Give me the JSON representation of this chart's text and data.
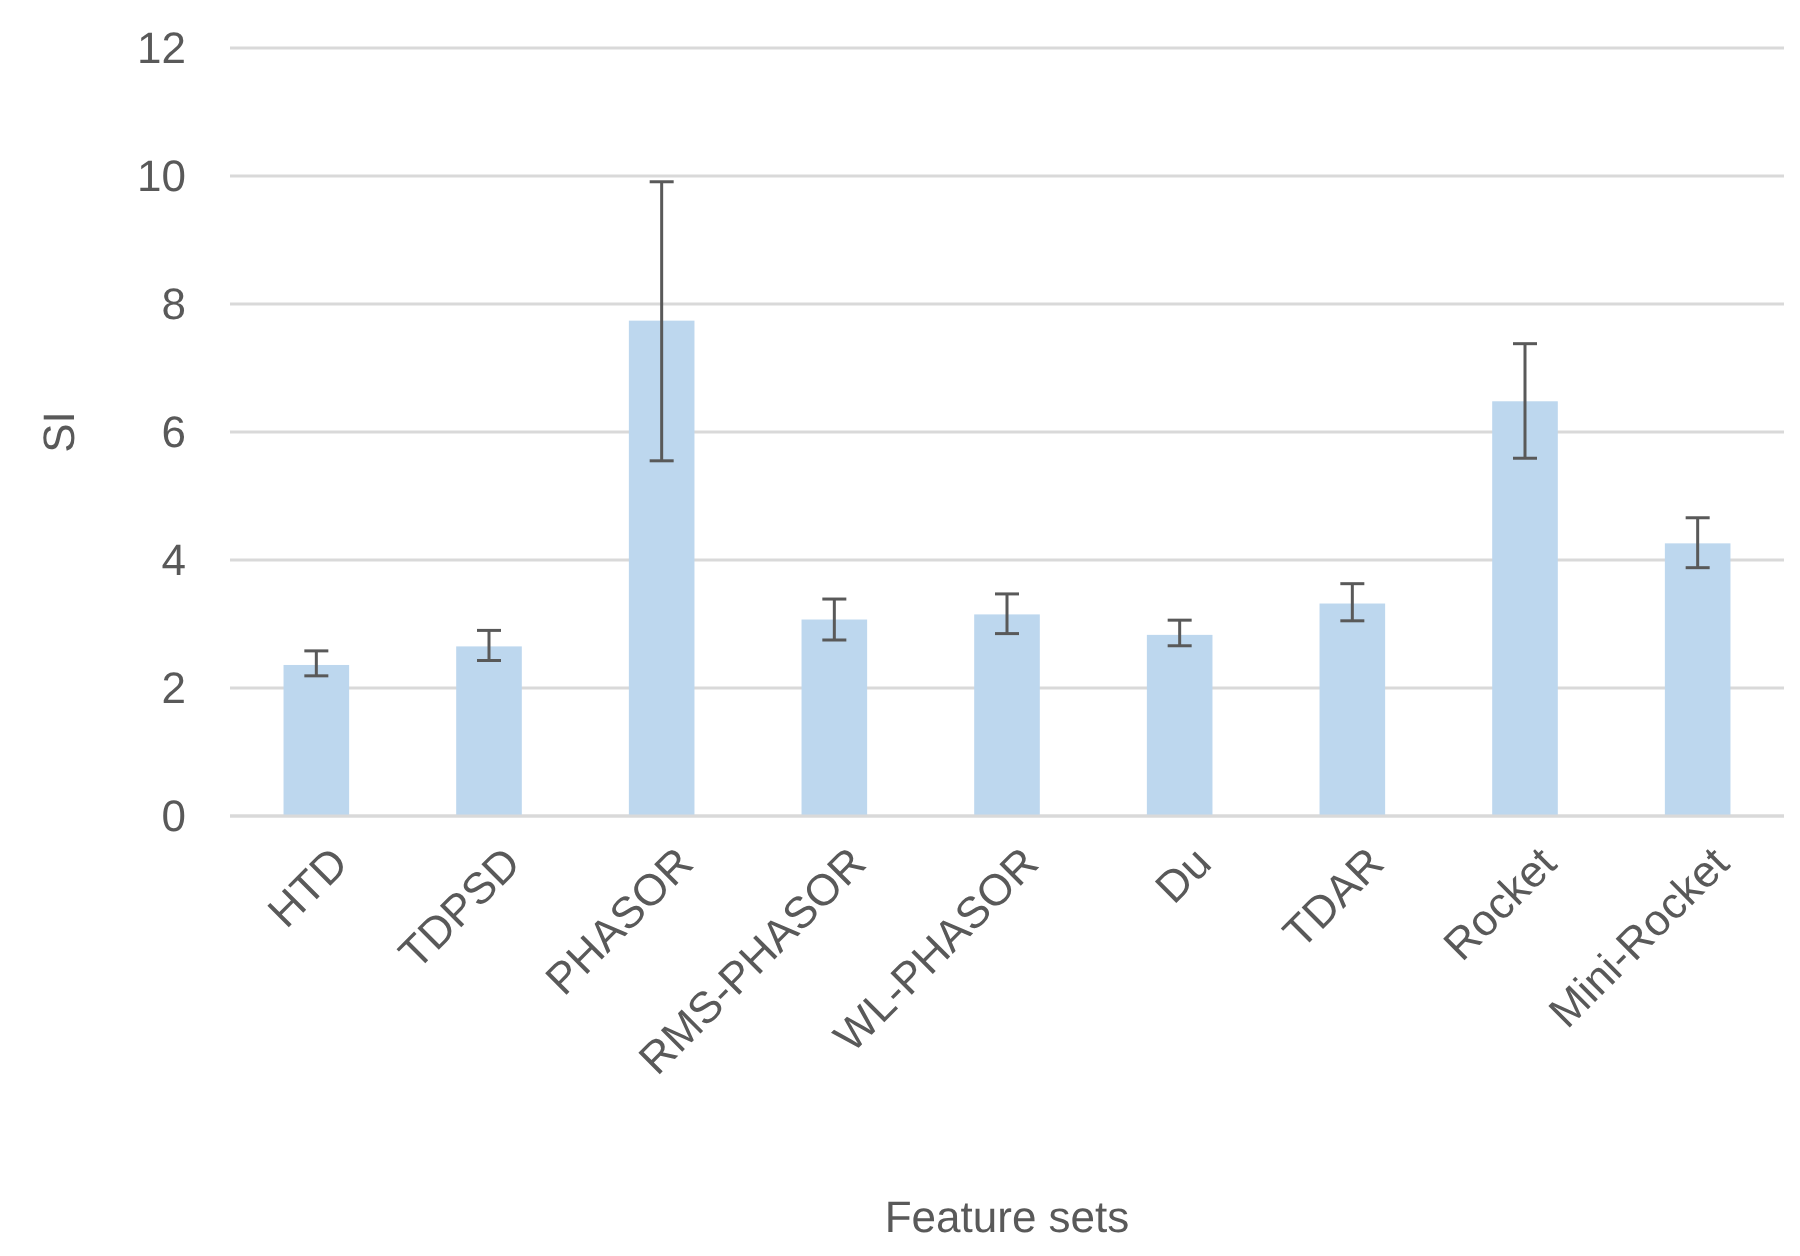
{
  "chart_data": {
    "type": "bar",
    "xlabel": "Feature sets",
    "ylabel": "SI",
    "categories": [
      "HTD",
      "TDPSD",
      "PHASOR",
      "RMS-PHASOR",
      "WL-PHASOR",
      "Du",
      "TDAR",
      "Rocket",
      "Mini-Rocket"
    ],
    "values": [
      2.36,
      2.65,
      7.74,
      3.07,
      3.15,
      2.83,
      3.32,
      6.48,
      4.26
    ],
    "errors": [
      [
        2.19,
        2.58
      ],
      [
        2.43,
        2.9
      ],
      [
        5.55,
        9.91
      ],
      [
        2.75,
        3.39
      ],
      [
        2.85,
        3.47
      ],
      [
        2.66,
        3.06
      ],
      [
        3.05,
        3.63
      ],
      [
        5.59,
        7.38
      ],
      [
        3.88,
        4.66
      ]
    ],
    "color": "#bdd7ee",
    "ylim": [
      0,
      12
    ],
    "yticks": [
      0,
      2,
      4,
      6,
      8,
      10,
      12
    ],
    "grid": "y"
  }
}
